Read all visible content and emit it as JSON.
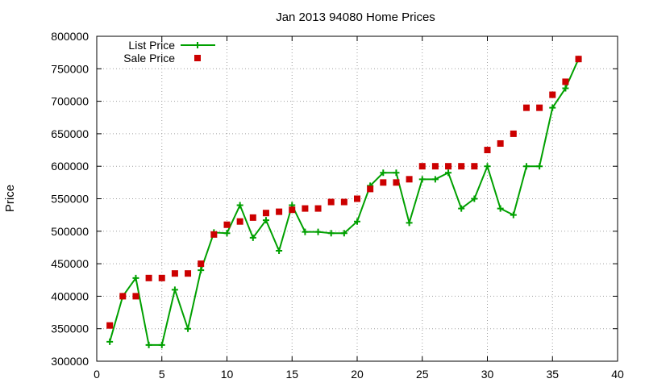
{
  "chart_data": {
    "type": "line",
    "title": "Jan 2013 94080 Home Prices",
    "xlabel": "",
    "ylabel": "Price",
    "xlim": [
      0,
      40
    ],
    "ylim": [
      300000,
      800000
    ],
    "xticks": [
      0,
      5,
      10,
      15,
      20,
      25,
      30,
      35,
      40
    ],
    "yticks": [
      300000,
      350000,
      400000,
      450000,
      500000,
      550000,
      600000,
      650000,
      700000,
      750000,
      800000
    ],
    "grid": true,
    "legend_position": "top-left",
    "series": [
      {
        "name": "List Price",
        "style": "lines+points",
        "marker": "plus",
        "color": "#00a000",
        "x": [
          1,
          2,
          3,
          4,
          5,
          6,
          7,
          8,
          9,
          10,
          11,
          12,
          13,
          14,
          15,
          16,
          17,
          18,
          19,
          20,
          21,
          22,
          23,
          24,
          25,
          26,
          27,
          28,
          29,
          30,
          31,
          32,
          33,
          34,
          35,
          36,
          37
        ],
        "values": [
          330000,
          400000,
          428000,
          325000,
          325000,
          410000,
          350000,
          440000,
          498000,
          497000,
          540000,
          490000,
          517000,
          470000,
          540000,
          499000,
          499000,
          497000,
          497000,
          515000,
          570000,
          590000,
          590000,
          513000,
          580000,
          580000,
          590000,
          535000,
          550000,
          600000,
          535000,
          525000,
          600000,
          600000,
          690000,
          720000,
          765000
        ]
      },
      {
        "name": "Sale Price",
        "style": "points",
        "marker": "square",
        "color": "#cc0000",
        "x": [
          1,
          2,
          3,
          4,
          5,
          6,
          7,
          8,
          9,
          10,
          11,
          12,
          13,
          14,
          15,
          16,
          17,
          18,
          19,
          20,
          21,
          22,
          23,
          24,
          25,
          26,
          27,
          28,
          29,
          30,
          31,
          32,
          33,
          34,
          35,
          36,
          37
        ],
        "values": [
          355000,
          400000,
          400000,
          428000,
          428000,
          435000,
          435000,
          450000,
          495000,
          510000,
          515000,
          521000,
          528000,
          530000,
          533000,
          535000,
          535000,
          545000,
          545000,
          550000,
          565000,
          575000,
          575000,
          580000,
          600000,
          600000,
          600000,
          600000,
          600000,
          625000,
          635000,
          650000,
          690000,
          690000,
          710000,
          730000,
          765000
        ]
      }
    ]
  }
}
